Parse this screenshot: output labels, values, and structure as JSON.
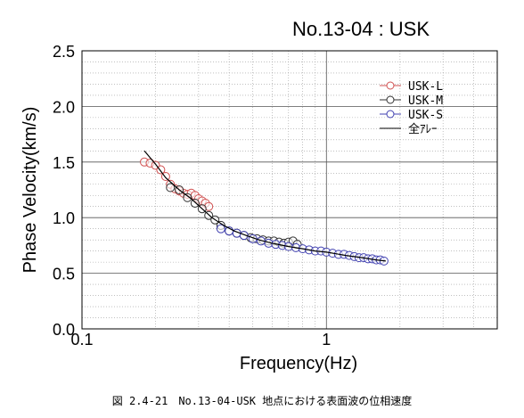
{
  "chart_data": {
    "type": "scatter",
    "title": "No.13-04 : USK",
    "xlabel": "Frequency(Hz)",
    "ylabel": "Phase Velocity(km/s)",
    "x_scale": "log",
    "xlim": [
      0.1,
      5
    ],
    "ylim": [
      0.0,
      2.5
    ],
    "x_ticks": [
      0.1,
      1
    ],
    "x_tick_labels": [
      "0.1",
      "1"
    ],
    "y_ticks": [
      0.0,
      0.5,
      1.0,
      1.5,
      2.0,
      2.5
    ],
    "y_tick_labels": [
      "0.0",
      "0.5",
      "1.0",
      "1.5",
      "2.0",
      "2.5"
    ],
    "grid": true,
    "legend_position": "top-right",
    "series": [
      {
        "name": "USK-L",
        "color": "#d05050",
        "marker": "circle",
        "x": [
          0.18,
          0.19,
          0.2,
          0.21,
          0.22,
          0.23,
          0.24,
          0.25,
          0.26,
          0.27,
          0.28,
          0.29,
          0.3,
          0.31,
          0.32,
          0.33
        ],
        "y": [
          1.5,
          1.49,
          1.47,
          1.43,
          1.37,
          1.3,
          1.26,
          1.24,
          1.22,
          1.21,
          1.22,
          1.2,
          1.17,
          1.15,
          1.13,
          1.1
        ]
      },
      {
        "name": "USK-M",
        "color": "#303030",
        "marker": "circle",
        "x": [
          0.23,
          0.25,
          0.27,
          0.29,
          0.31,
          0.33,
          0.35,
          0.37,
          0.4,
          0.43,
          0.46,
          0.49,
          0.52,
          0.55,
          0.58,
          0.61,
          0.64,
          0.67,
          0.7,
          0.73,
          0.76
        ],
        "y": [
          1.27,
          1.25,
          1.18,
          1.13,
          1.08,
          1.02,
          0.98,
          0.93,
          0.88,
          0.86,
          0.84,
          0.82,
          0.81,
          0.8,
          0.79,
          0.79,
          0.78,
          0.77,
          0.78,
          0.79,
          0.76
        ]
      },
      {
        "name": "USK-S",
        "color": "#4040b0",
        "marker": "circle",
        "x": [
          0.37,
          0.4,
          0.43,
          0.46,
          0.5,
          0.54,
          0.58,
          0.62,
          0.66,
          0.7,
          0.75,
          0.8,
          0.85,
          0.9,
          0.95,
          1.0,
          1.06,
          1.12,
          1.18,
          1.24,
          1.3,
          1.36,
          1.42,
          1.48,
          1.54,
          1.6,
          1.66,
          1.72
        ],
        "y": [
          0.9,
          0.88,
          0.86,
          0.84,
          0.81,
          0.79,
          0.77,
          0.76,
          0.75,
          0.74,
          0.73,
          0.72,
          0.71,
          0.7,
          0.7,
          0.69,
          0.68,
          0.67,
          0.67,
          0.66,
          0.65,
          0.64,
          0.64,
          0.63,
          0.63,
          0.62,
          0.62,
          0.61
        ]
      },
      {
        "name": "全ｱﾚｰ",
        "color": "#000000",
        "marker": "line",
        "x": [
          0.18,
          0.2,
          0.22,
          0.25,
          0.28,
          0.31,
          0.34,
          0.38,
          0.42,
          0.47,
          0.53,
          0.6,
          0.7,
          0.8,
          0.9,
          1.0,
          1.2,
          1.4,
          1.6,
          1.75
        ],
        "y": [
          1.6,
          1.48,
          1.36,
          1.25,
          1.17,
          1.08,
          1.0,
          0.93,
          0.88,
          0.84,
          0.8,
          0.77,
          0.74,
          0.72,
          0.7,
          0.69,
          0.66,
          0.64,
          0.62,
          0.61
        ]
      }
    ]
  },
  "caption": "図 2.4-21　No.13-04-USK 地点における表面波の位相速度"
}
